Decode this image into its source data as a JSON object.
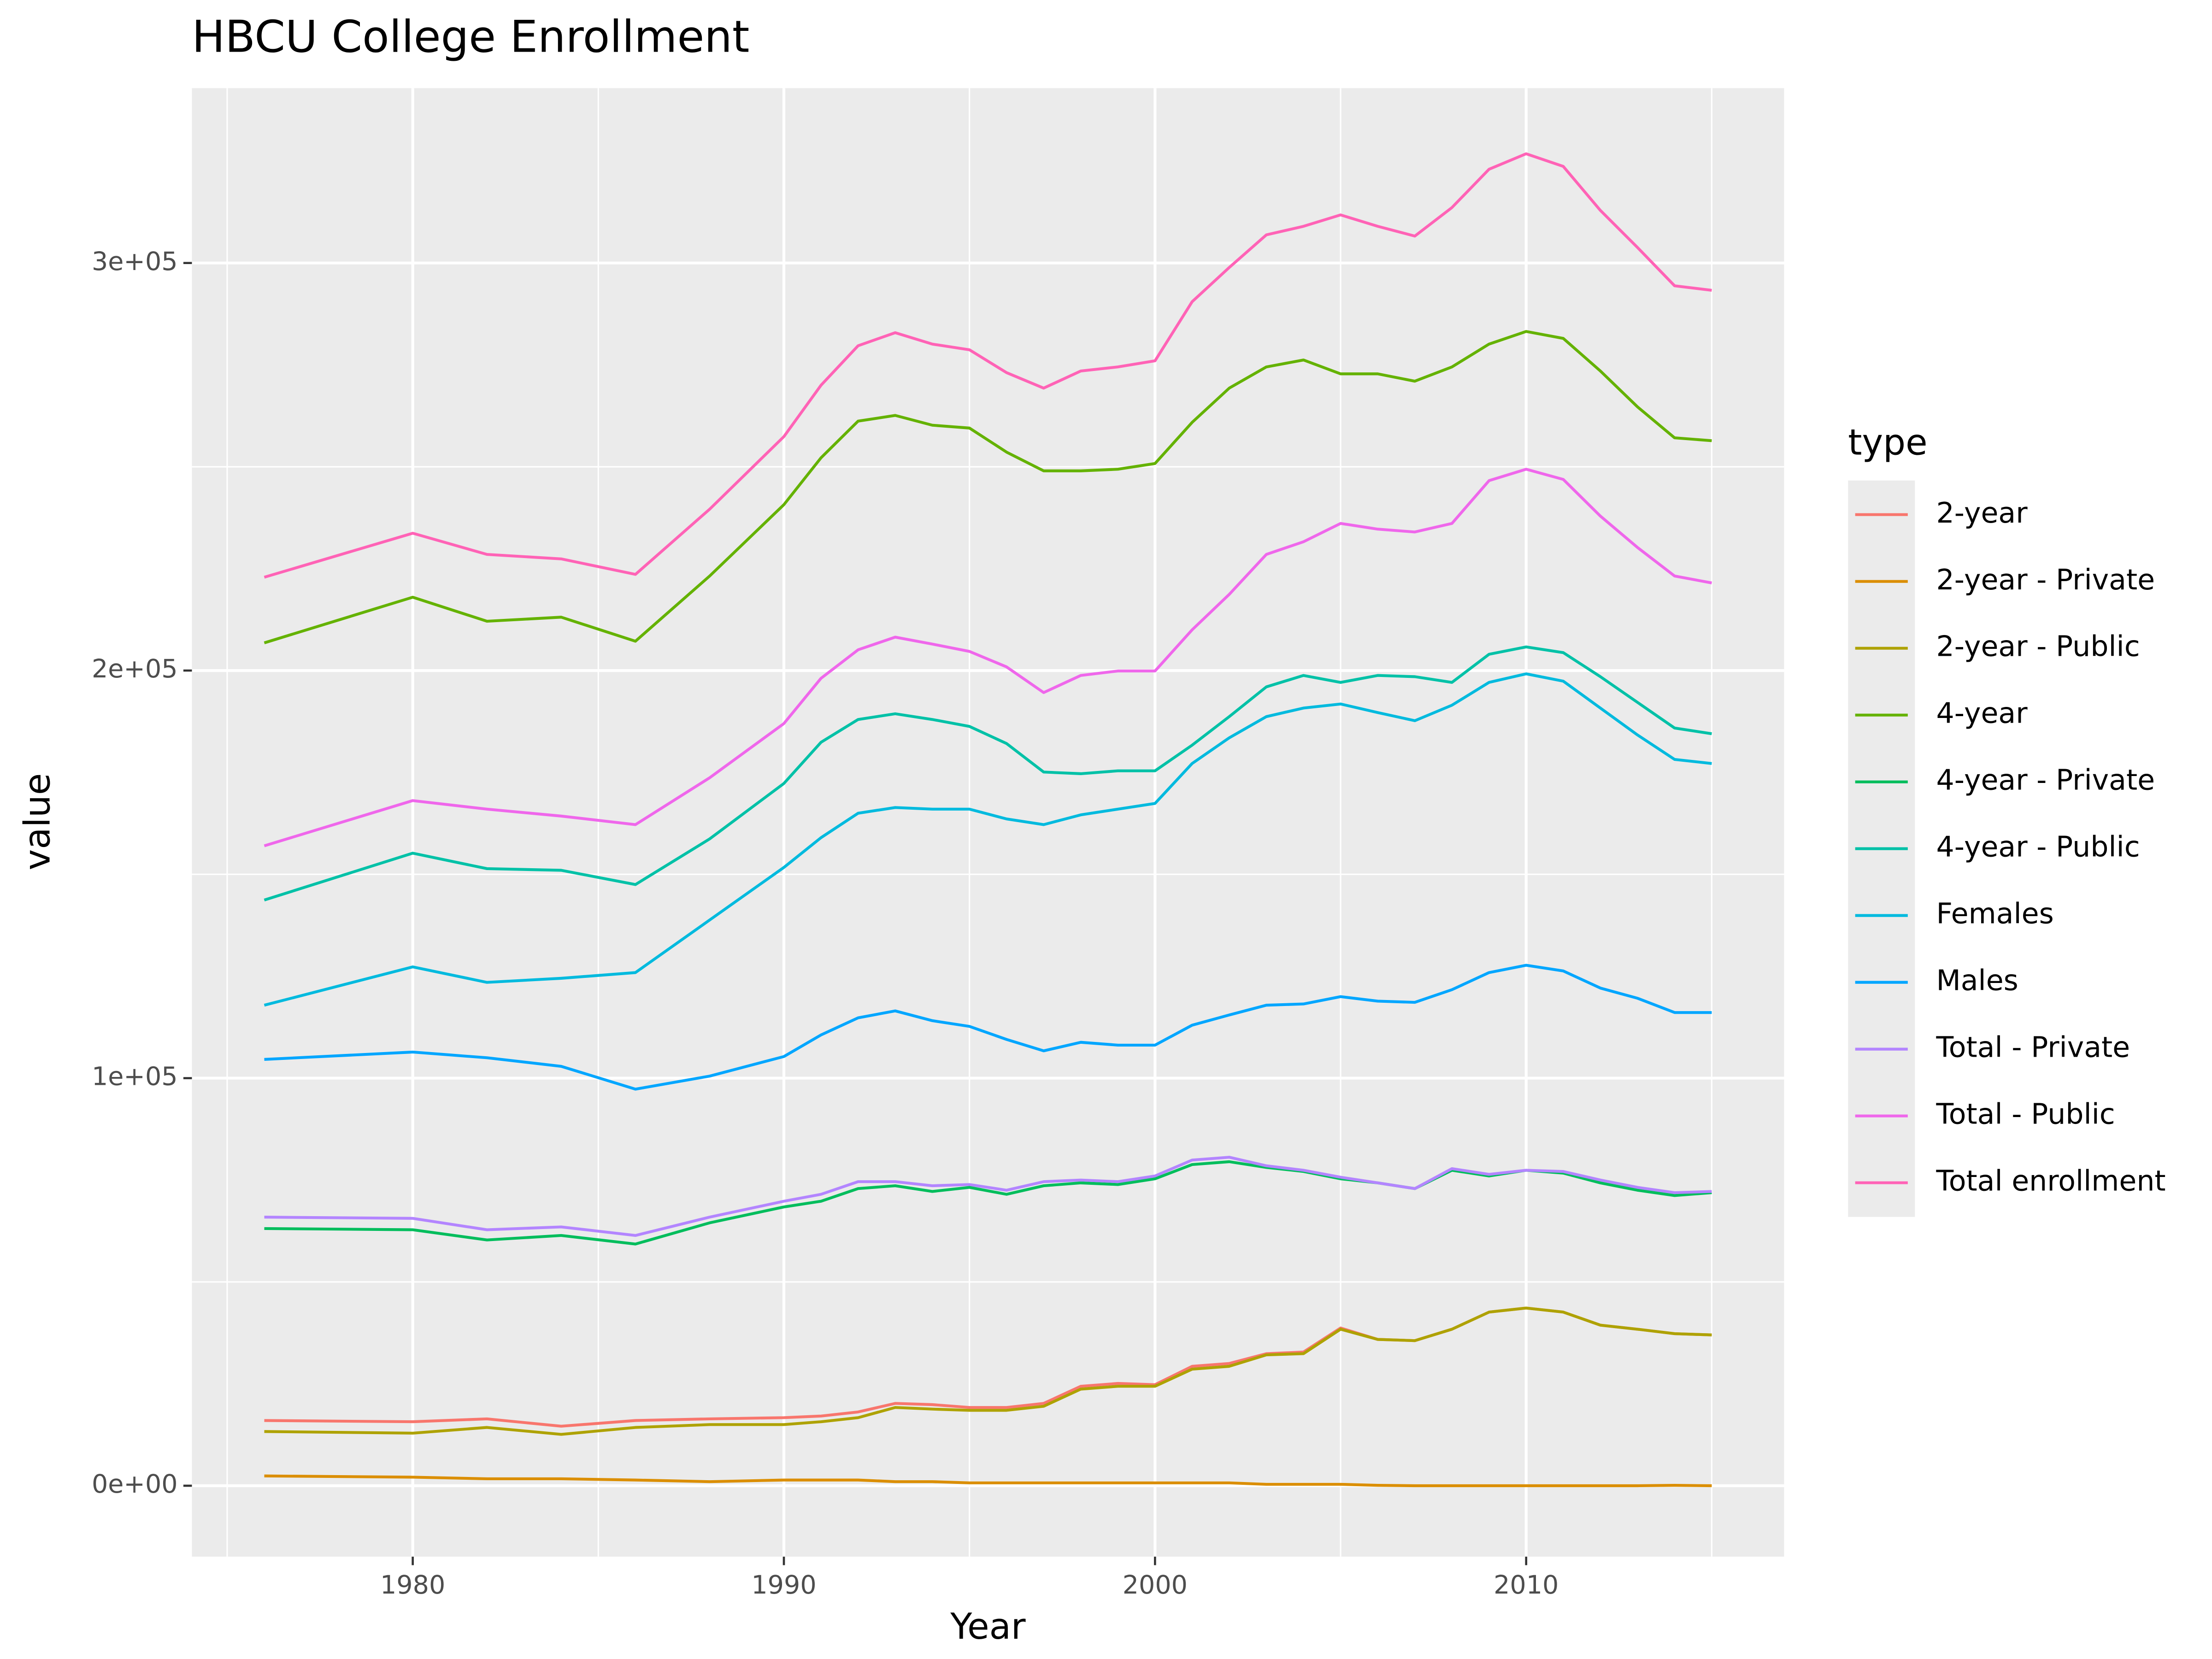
{
  "chart_data": {
    "type": "line",
    "title": "HBCU College Enrollment",
    "x_label": "Year",
    "y_label": "value",
    "legend_title": "type",
    "legend_position": "right",
    "grid": true,
    "xlim": [
      1974.05,
      2016.95
    ],
    "ylim": [
      -17400,
      342900
    ],
    "xticks": [
      1980,
      1990,
      2000,
      2010
    ],
    "yticks": [
      {
        "value": 0,
        "label": "0e+00"
      },
      {
        "value": 100000,
        "label": "1e+05"
      },
      {
        "value": 200000,
        "label": "2e+05"
      },
      {
        "value": 300000,
        "label": "3e+05"
      }
    ],
    "x_minor_ticks": [
      1975,
      1985,
      1995,
      2005,
      2015
    ],
    "y_minor_ticks": [
      50000,
      150000,
      250000
    ],
    "x": [
      1976,
      1980,
      1982,
      1984,
      1986,
      1988,
      1990,
      1991,
      1992,
      1993,
      1994,
      1995,
      1996,
      1997,
      1998,
      1999,
      2000,
      2001,
      2002,
      2003,
      2004,
      2005,
      2006,
      2007,
      2008,
      2009,
      2010,
      2011,
      2012,
      2013,
      2014,
      2015
    ],
    "series": [
      {
        "name": "2-year",
        "color": "#F8766D",
        "values": [
          16000,
          15700,
          16400,
          14600,
          16000,
          16400,
          16700,
          17100,
          18100,
          20200,
          19900,
          19200,
          19200,
          20200,
          24400,
          25100,
          24800,
          29300,
          30000,
          32400,
          32800,
          38700,
          35900,
          35600,
          38400,
          42600,
          43600,
          42600,
          39400,
          38400,
          37300,
          37000
        ]
      },
      {
        "name": "2-year - Private",
        "color": "#DB8E00",
        "values": [
          2400,
          2100,
          1700,
          1700,
          1400,
          1000,
          1400,
          1400,
          1400,
          1000,
          1000,
          700,
          700,
          700,
          700,
          700,
          700,
          700,
          700,
          350,
          350,
          350,
          100,
          0,
          0,
          0,
          0,
          0,
          0,
          0,
          100,
          0
        ]
      },
      {
        "name": "2-year - Public",
        "color": "#AEA200",
        "values": [
          13300,
          12900,
          14300,
          12600,
          14300,
          15000,
          15000,
          15700,
          16700,
          19200,
          18800,
          18500,
          18500,
          19500,
          23700,
          24400,
          24400,
          28600,
          29300,
          32100,
          32400,
          38400,
          35900,
          35600,
          38400,
          42600,
          43600,
          42600,
          39400,
          38400,
          37300,
          37000
        ]
      },
      {
        "name": "4-year",
        "color": "#64B200",
        "values": [
          206800,
          218000,
          212100,
          213100,
          207200,
          223200,
          240700,
          252200,
          261200,
          262600,
          260200,
          259500,
          253600,
          249000,
          249000,
          249400,
          250800,
          260900,
          269300,
          274500,
          276200,
          272800,
          272800,
          271000,
          274500,
          280100,
          283200,
          281500,
          273500,
          264700,
          257100,
          256400
        ]
      },
      {
        "name": "4-year - Private",
        "color": "#00BD5C",
        "values": [
          63100,
          62800,
          60300,
          61400,
          59300,
          64500,
          68400,
          69800,
          72900,
          73600,
          72200,
          73200,
          71500,
          73600,
          74300,
          73900,
          75300,
          78800,
          79500,
          78100,
          77100,
          75300,
          74300,
          72900,
          77400,
          76000,
          77400,
          76700,
          74300,
          72500,
          71200,
          71900
        ]
      },
      {
        "name": "4-year - Public",
        "color": "#00C1A7",
        "values": [
          143700,
          155200,
          151400,
          151000,
          147500,
          158700,
          172300,
          182400,
          188000,
          189400,
          188000,
          186300,
          182100,
          175100,
          174700,
          175400,
          175400,
          181700,
          188700,
          196000,
          198800,
          197100,
          198800,
          198500,
          197100,
          204000,
          205800,
          204400,
          198500,
          192200,
          185900,
          184500
        ]
      },
      {
        "name": "Females",
        "color": "#00BADE",
        "values": [
          117900,
          127300,
          123500,
          124500,
          125900,
          138800,
          151700,
          159000,
          165000,
          166400,
          166000,
          166000,
          163600,
          162200,
          164600,
          166000,
          167400,
          177200,
          183500,
          188700,
          190800,
          191800,
          189700,
          187700,
          191500,
          197100,
          199200,
          197400,
          190800,
          184200,
          178200,
          177200
        ]
      },
      {
        "name": "Males",
        "color": "#00A6FF",
        "values": [
          104600,
          106400,
          105000,
          102900,
          97300,
          100500,
          105300,
          110600,
          114800,
          116500,
          114100,
          112700,
          109500,
          106700,
          108800,
          108100,
          108100,
          113000,
          115500,
          117900,
          118200,
          120000,
          118900,
          118600,
          121700,
          125900,
          127700,
          126300,
          122100,
          119600,
          116100,
          116100
        ]
      },
      {
        "name": "Total - Private",
        "color": "#B385FF",
        "values": [
          65900,
          65600,
          62800,
          63500,
          61400,
          65900,
          69800,
          71500,
          74600,
          74600,
          73600,
          73900,
          72500,
          74600,
          75000,
          74600,
          76000,
          79900,
          80600,
          78500,
          77400,
          75700,
          74300,
          72900,
          77800,
          76400,
          77400,
          77100,
          75000,
          73200,
          71900,
          72200
        ]
      },
      {
        "name": "Total - Public",
        "color": "#EF67EB",
        "values": [
          157000,
          168100,
          166000,
          164300,
          162200,
          173700,
          187000,
          198100,
          205100,
          208200,
          206500,
          204700,
          200900,
          194600,
          198800,
          199900,
          199900,
          210000,
          218700,
          228500,
          231600,
          236100,
          234700,
          234000,
          236100,
          246600,
          249400,
          246900,
          237900,
          230200,
          223200,
          221500
        ]
      },
      {
        "name": "Total enrollment",
        "color": "#FF63B6",
        "values": [
          222900,
          233700,
          228500,
          227400,
          223600,
          239600,
          257400,
          270000,
          279700,
          282900,
          280100,
          278700,
          273100,
          269300,
          273500,
          274500,
          276000,
          290500,
          298900,
          306900,
          309000,
          311800,
          309000,
          306600,
          313600,
          323000,
          326800,
          323700,
          312900,
          303800,
          294400,
          293300
        ]
      }
    ]
  }
}
